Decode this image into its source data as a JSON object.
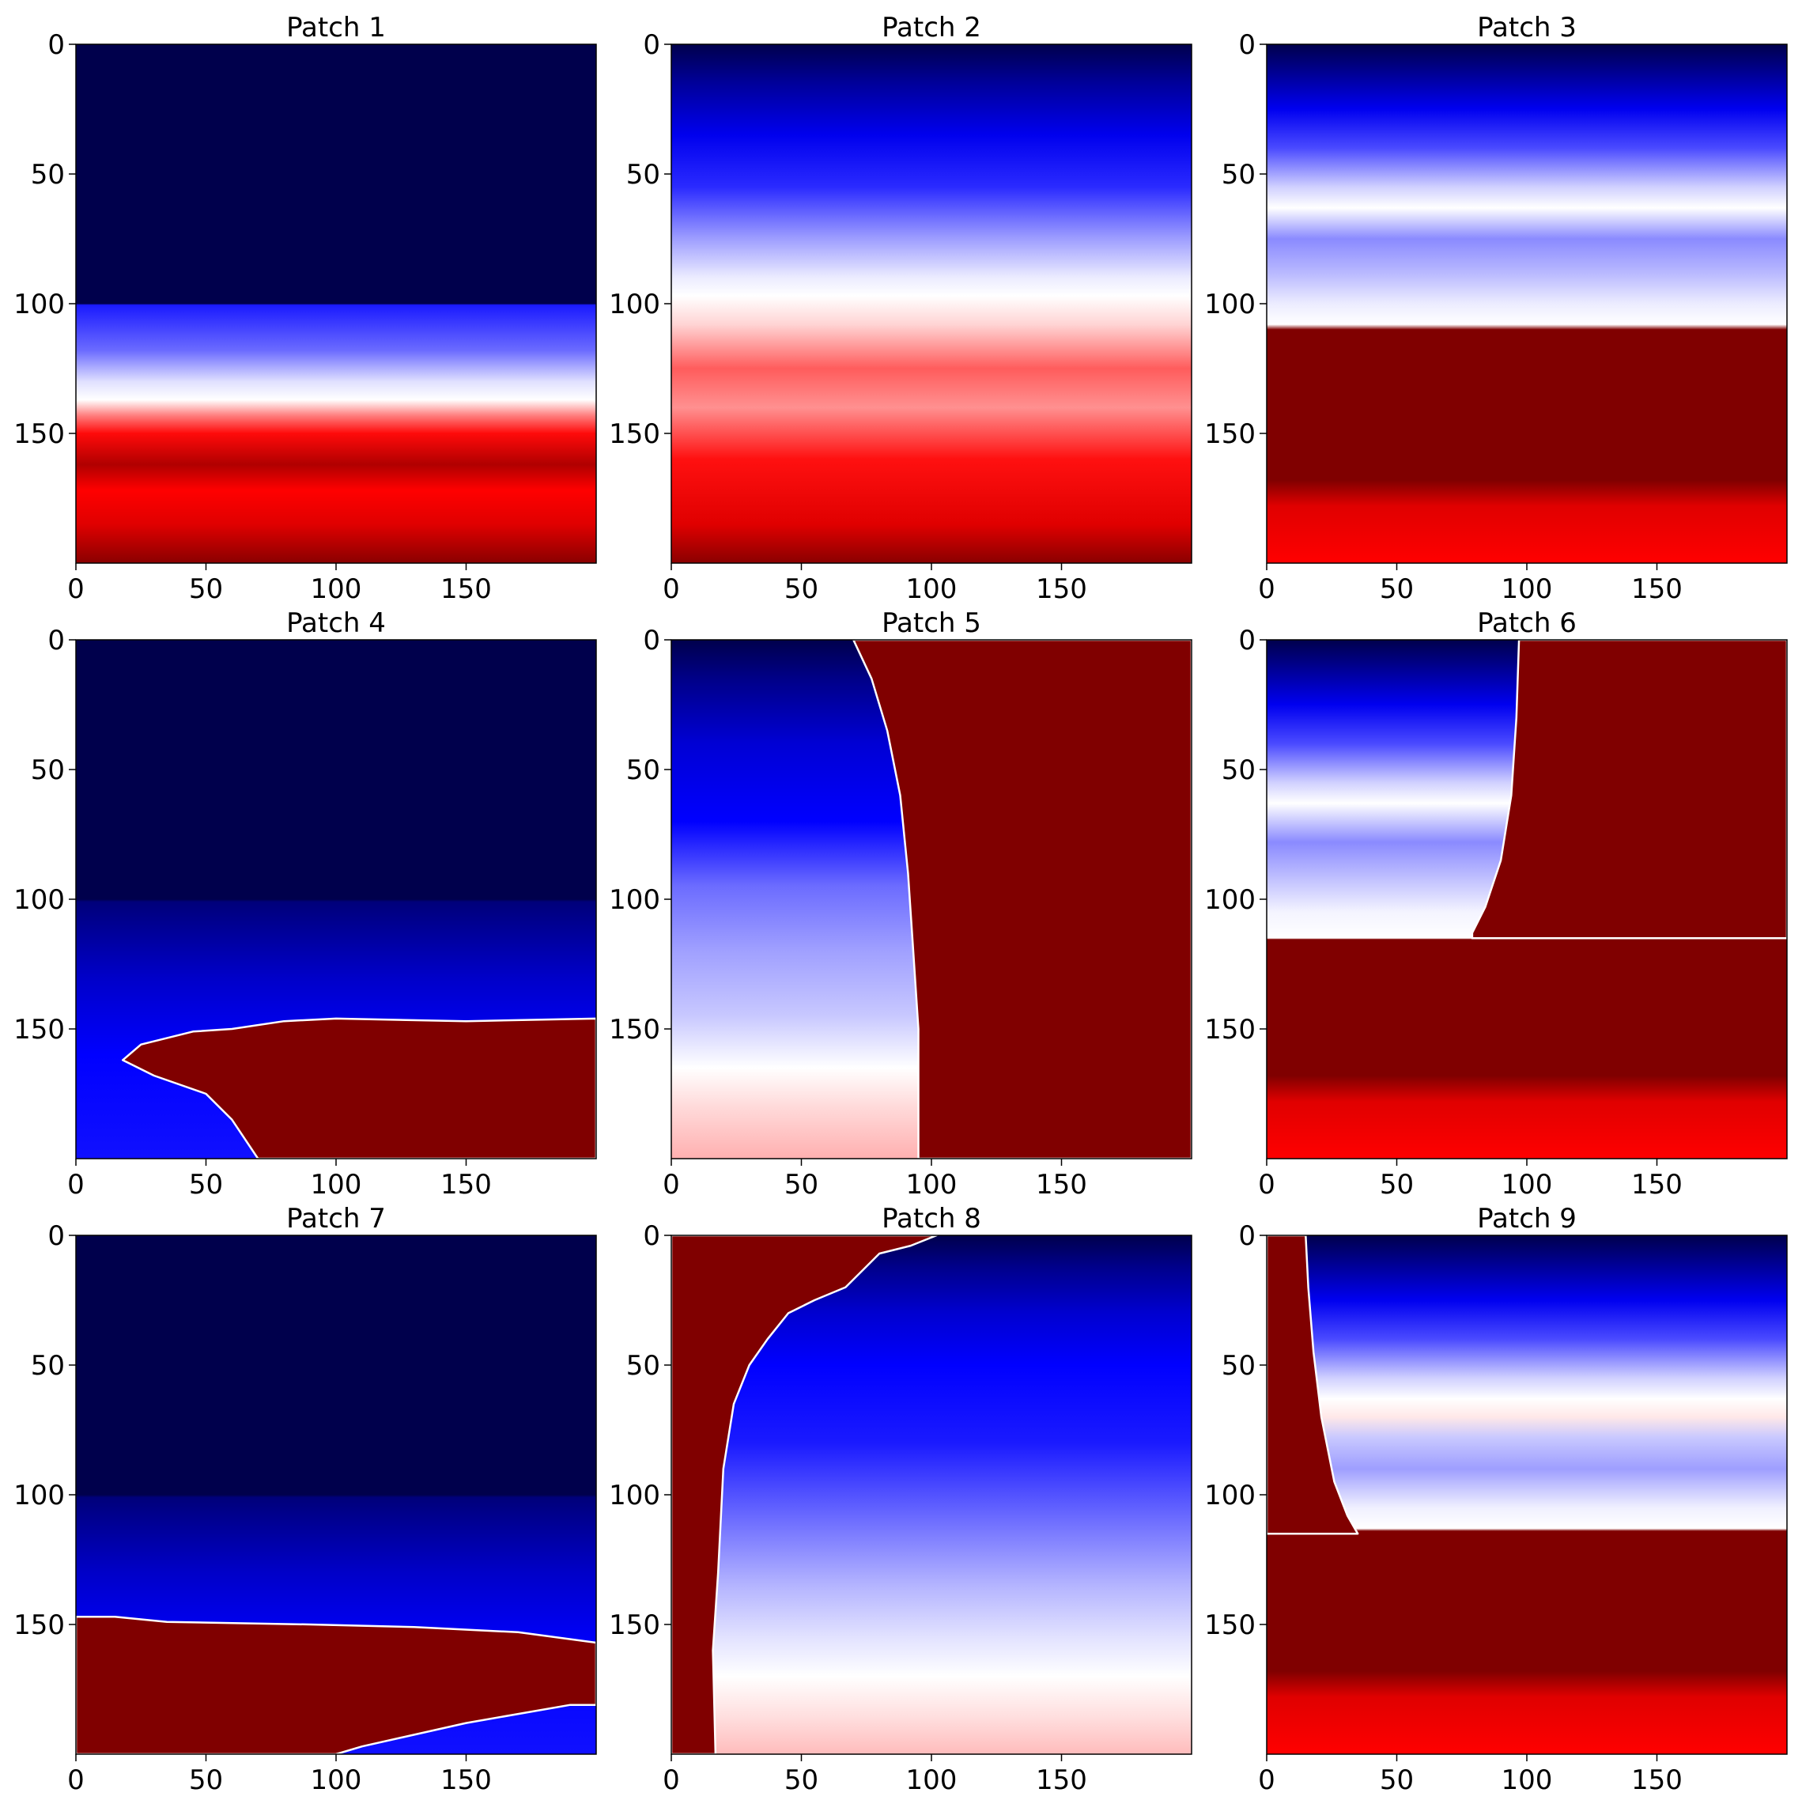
{
  "chart_data": [
    {
      "type": "heatmap",
      "title": "Patch 1",
      "xticks": [
        0,
        50,
        100,
        150
      ],
      "yticks": [
        0,
        50,
        100,
        150
      ],
      "xlim": [
        0,
        200
      ],
      "ylim": [
        200,
        0
      ],
      "colormap": "seismic",
      "bands": [
        {
          "y": 0,
          "color": "#00004c"
        },
        {
          "y": 100,
          "color": "#00004c"
        },
        {
          "y": 100.5,
          "color": "#1a1aff"
        },
        {
          "y": 118,
          "color": "#6b6bff"
        },
        {
          "y": 130,
          "color": "#e0e0ff"
        },
        {
          "y": 137,
          "color": "#ffffff"
        },
        {
          "y": 143,
          "color": "#ff8080"
        },
        {
          "y": 150,
          "color": "#ff0a0a"
        },
        {
          "y": 162,
          "color": "#b00000"
        },
        {
          "y": 172,
          "color": "#ff0000"
        },
        {
          "y": 185,
          "color": "#e00000"
        },
        {
          "y": 200,
          "color": "#8a0000"
        }
      ]
    },
    {
      "type": "heatmap",
      "title": "Patch 2",
      "xticks": [
        0,
        50,
        100,
        150
      ],
      "yticks": [
        0,
        50,
        100,
        150
      ],
      "xlim": [
        0,
        200
      ],
      "ylim": [
        200,
        0
      ],
      "colormap": "seismic",
      "bands": [
        {
          "y": 0,
          "color": "#00004c"
        },
        {
          "y": 15,
          "color": "#00009a"
        },
        {
          "y": 35,
          "color": "#0000ee"
        },
        {
          "y": 55,
          "color": "#2a2aff"
        },
        {
          "y": 75,
          "color": "#9e9eff"
        },
        {
          "y": 90,
          "color": "#ececff"
        },
        {
          "y": 97,
          "color": "#ffffff"
        },
        {
          "y": 108,
          "color": "#ffd4d4"
        },
        {
          "y": 125,
          "color": "#ff5c5c"
        },
        {
          "y": 140,
          "color": "#ff9090"
        },
        {
          "y": 160,
          "color": "#ff1010"
        },
        {
          "y": 185,
          "color": "#e00000"
        },
        {
          "y": 200,
          "color": "#8a0000"
        }
      ]
    },
    {
      "type": "heatmap",
      "title": "Patch 3",
      "xticks": [
        0,
        50,
        100,
        150
      ],
      "yticks": [
        0,
        50,
        100,
        150
      ],
      "xlim": [
        0,
        200
      ],
      "ylim": [
        200,
        0
      ],
      "colormap": "seismic",
      "bands": [
        {
          "y": 0,
          "color": "#00004c"
        },
        {
          "y": 12,
          "color": "#00009a"
        },
        {
          "y": 25,
          "color": "#0000f0"
        },
        {
          "y": 40,
          "color": "#4a4aff"
        },
        {
          "y": 55,
          "color": "#d0d0ff"
        },
        {
          "y": 63,
          "color": "#ffffff"
        },
        {
          "y": 75,
          "color": "#8a8aff"
        },
        {
          "y": 88,
          "color": "#b8b8ff"
        },
        {
          "y": 100,
          "color": "#ececff"
        },
        {
          "y": 108,
          "color": "#ffffff"
        },
        {
          "y": 110,
          "color": "#800000"
        },
        {
          "y": 168,
          "color": "#800000"
        },
        {
          "y": 178,
          "color": "#e00000"
        },
        {
          "y": 200,
          "color": "#ff0000"
        }
      ]
    },
    {
      "type": "heatmap",
      "title": "Patch 4",
      "xticks": [
        0,
        50,
        100,
        150
      ],
      "yticks": [
        0,
        50,
        100,
        150
      ],
      "xlim": [
        0,
        200
      ],
      "ylim": [
        200,
        0
      ],
      "colormap": "seismic",
      "bands": [
        {
          "y": 0,
          "color": "#00004c"
        },
        {
          "y": 100,
          "color": "#00004c"
        },
        {
          "y": 101,
          "color": "#00007a"
        },
        {
          "y": 130,
          "color": "#0000c8"
        },
        {
          "y": 160,
          "color": "#0000ff"
        },
        {
          "y": 200,
          "color": "#1010ff"
        }
      ],
      "regions": [
        {
          "color": "#800000",
          "points": [
            [
              70,
              200
            ],
            [
              60,
              185
            ],
            [
              50,
              175
            ],
            [
              30,
              168
            ],
            [
              18,
              162
            ],
            [
              25,
              156
            ],
            [
              45,
              151
            ],
            [
              60,
              150
            ],
            [
              80,
              147
            ],
            [
              100,
              146
            ],
            [
              150,
              147
            ],
            [
              200,
              146
            ],
            [
              200,
              200
            ]
          ]
        }
      ]
    },
    {
      "type": "heatmap",
      "title": "Patch 5",
      "xticks": [
        0,
        50,
        100,
        150
      ],
      "yticks": [
        0,
        50,
        100,
        150
      ],
      "xlim": [
        0,
        200
      ],
      "ylim": [
        200,
        0
      ],
      "colormap": "seismic",
      "bands": [
        {
          "y": 0,
          "color": "#00004c"
        },
        {
          "y": 15,
          "color": "#000088"
        },
        {
          "y": 40,
          "color": "#0000d4"
        },
        {
          "y": 70,
          "color": "#0000ff"
        },
        {
          "y": 95,
          "color": "#6c6cff"
        },
        {
          "y": 120,
          "color": "#a0a0ff"
        },
        {
          "y": 145,
          "color": "#c8c8ff"
        },
        {
          "y": 165,
          "color": "#ffffff"
        },
        {
          "y": 180,
          "color": "#ffdada"
        },
        {
          "y": 200,
          "color": "#ffb0b0"
        }
      ],
      "regions": [
        {
          "color": "#800000",
          "points": [
            [
              70,
              0
            ],
            [
              77,
              15
            ],
            [
              83,
              35
            ],
            [
              88,
              60
            ],
            [
              91,
              90
            ],
            [
              93,
              120
            ],
            [
              95,
              150
            ],
            [
              95,
              180
            ],
            [
              95,
              200
            ],
            [
              200,
              200
            ],
            [
              200,
              0
            ]
          ]
        }
      ]
    },
    {
      "type": "heatmap",
      "title": "Patch 6",
      "xticks": [
        0,
        50,
        100,
        150
      ],
      "yticks": [
        0,
        50,
        100,
        150
      ],
      "xlim": [
        0,
        200
      ],
      "ylim": [
        200,
        0
      ],
      "colormap": "seismic",
      "bands": [
        {
          "y": 0,
          "color": "#00004c"
        },
        {
          "y": 12,
          "color": "#00009a"
        },
        {
          "y": 25,
          "color": "#0000f0"
        },
        {
          "y": 40,
          "color": "#4a4aff"
        },
        {
          "y": 55,
          "color": "#d0d0ff"
        },
        {
          "y": 63,
          "color": "#ffffff"
        },
        {
          "y": 78,
          "color": "#8a8aff"
        },
        {
          "y": 92,
          "color": "#c0c0ff"
        },
        {
          "y": 105,
          "color": "#f4f4ff"
        },
        {
          "y": 115,
          "color": "#ffffff"
        },
        {
          "y": 115.5,
          "color": "#800000"
        },
        {
          "y": 168,
          "color": "#800000"
        },
        {
          "y": 178,
          "color": "#e00000"
        },
        {
          "y": 200,
          "color": "#ff0000"
        }
      ],
      "regions": [
        {
          "color": "#800000",
          "points": [
            [
              97,
              0
            ],
            [
              96,
              30
            ],
            [
              94,
              60
            ],
            [
              90,
              85
            ],
            [
              84,
              103
            ],
            [
              79,
              113
            ],
            [
              79,
              115
            ],
            [
              200,
              115
            ],
            [
              200,
              0
            ]
          ]
        }
      ]
    },
    {
      "type": "heatmap",
      "title": "Patch 7",
      "xticks": [
        0,
        50,
        100,
        150
      ],
      "yticks": [
        0,
        50,
        100,
        150
      ],
      "xlim": [
        0,
        200
      ],
      "ylim": [
        200,
        0
      ],
      "colormap": "seismic",
      "bands": [
        {
          "y": 0,
          "color": "#00004c"
        },
        {
          "y": 100,
          "color": "#00004c"
        },
        {
          "y": 101,
          "color": "#00007a"
        },
        {
          "y": 130,
          "color": "#0000c8"
        },
        {
          "y": 160,
          "color": "#0000ff"
        },
        {
          "y": 200,
          "color": "#1010ff"
        }
      ],
      "regions": [
        {
          "color": "#800000",
          "points": [
            [
              0,
              147
            ],
            [
              15,
              147
            ],
            [
              35,
              149
            ],
            [
              90,
              150
            ],
            [
              130,
              151
            ],
            [
              170,
              153
            ],
            [
              200,
              157
            ],
            [
              200,
              181
            ],
            [
              190,
              181
            ],
            [
              150,
              188
            ],
            [
              110,
              197
            ],
            [
              100,
              200
            ],
            [
              0,
              200
            ]
          ]
        }
      ]
    },
    {
      "type": "heatmap",
      "title": "Patch 8",
      "xticks": [
        0,
        50,
        100,
        150
      ],
      "yticks": [
        0,
        50,
        100,
        150
      ],
      "xlim": [
        0,
        200
      ],
      "ylim": [
        200,
        0
      ],
      "colormap": "seismic",
      "bands": [
        {
          "y": 0,
          "color": "#00004c"
        },
        {
          "y": 12,
          "color": "#00008a"
        },
        {
          "y": 30,
          "color": "#0000d0"
        },
        {
          "y": 50,
          "color": "#0000ff"
        },
        {
          "y": 80,
          "color": "#1a1aff"
        },
        {
          "y": 110,
          "color": "#6e6eff"
        },
        {
          "y": 135,
          "color": "#b4b4ff"
        },
        {
          "y": 155,
          "color": "#e2e2ff"
        },
        {
          "y": 170,
          "color": "#ffffff"
        },
        {
          "y": 185,
          "color": "#ffe0e0"
        },
        {
          "y": 200,
          "color": "#ffbcbc"
        }
      ],
      "regions": [
        {
          "color": "#800000",
          "points": [
            [
              0,
              0
            ],
            [
              102,
              0
            ],
            [
              92,
              4
            ],
            [
              80,
              7
            ],
            [
              75,
              12
            ],
            [
              67,
              20
            ],
            [
              55,
              25
            ],
            [
              45,
              30
            ],
            [
              37,
              40
            ],
            [
              30,
              50
            ],
            [
              24,
              65
            ],
            [
              20,
              90
            ],
            [
              18,
              130
            ],
            [
              16,
              160
            ],
            [
              17,
              200
            ],
            [
              0,
              200
            ]
          ]
        }
      ]
    },
    {
      "type": "heatmap",
      "title": "Patch 9",
      "xticks": [
        0,
        50,
        100,
        150
      ],
      "yticks": [
        0,
        50,
        100,
        150
      ],
      "xlim": [
        0,
        200
      ],
      "ylim": [
        200,
        0
      ],
      "colormap": "seismic",
      "bands": [
        {
          "y": 0,
          "color": "#00004c"
        },
        {
          "y": 12,
          "color": "#00009a"
        },
        {
          "y": 25,
          "color": "#0000f0"
        },
        {
          "y": 40,
          "color": "#4a4aff"
        },
        {
          "y": 55,
          "color": "#d0d0ff"
        },
        {
          "y": 63,
          "color": "#ffffff"
        },
        {
          "y": 70,
          "color": "#ffe8e8"
        },
        {
          "y": 78,
          "color": "#c8c8ff"
        },
        {
          "y": 90,
          "color": "#9e9eff"
        },
        {
          "y": 105,
          "color": "#f0f0ff"
        },
        {
          "y": 113,
          "color": "#ffffff"
        },
        {
          "y": 114,
          "color": "#800000"
        },
        {
          "y": 168,
          "color": "#800000"
        },
        {
          "y": 178,
          "color": "#e00000"
        },
        {
          "y": 200,
          "color": "#ff0000"
        }
      ],
      "regions": [
        {
          "color": "#800000",
          "points": [
            [
              0,
              0
            ],
            [
              15,
              0
            ],
            [
              16,
              20
            ],
            [
              18,
              45
            ],
            [
              21,
              70
            ],
            [
              26,
              95
            ],
            [
              31,
              108
            ],
            [
              35,
              115
            ],
            [
              0,
              115
            ]
          ]
        }
      ]
    }
  ]
}
